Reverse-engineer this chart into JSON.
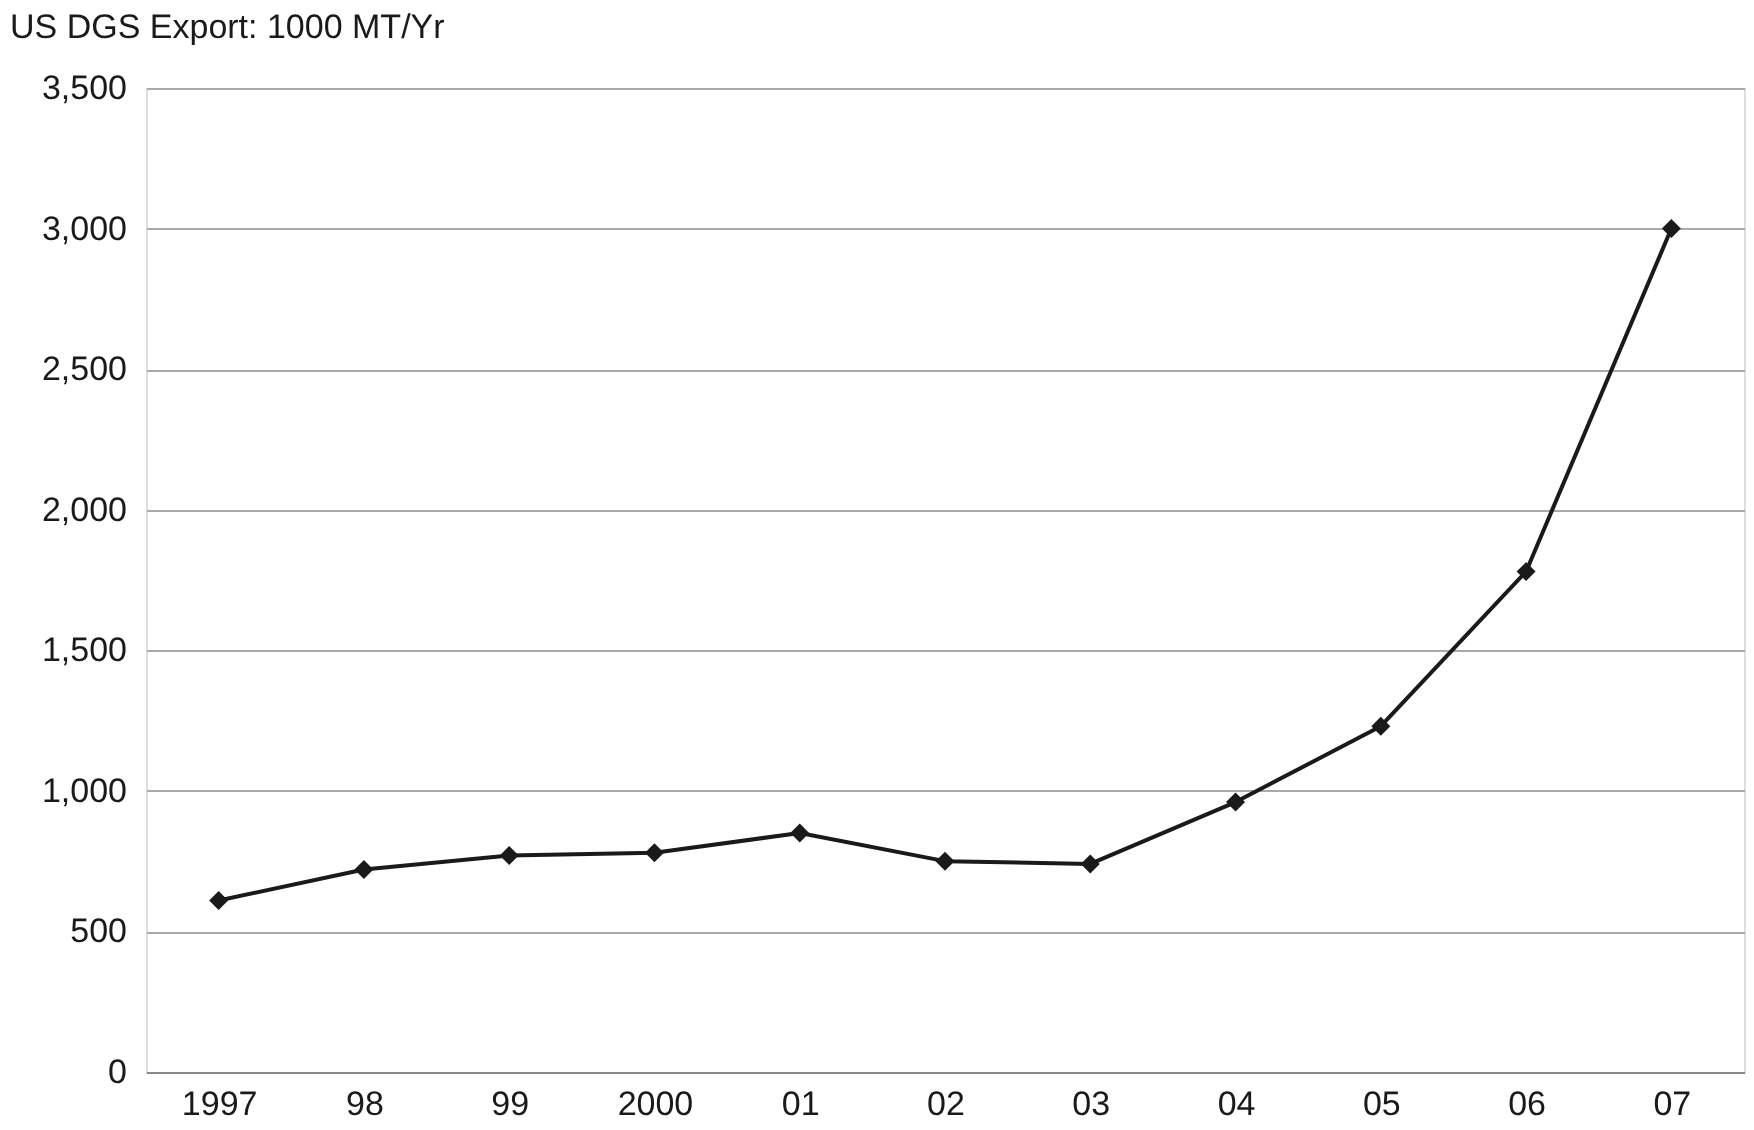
{
  "chart_data": {
    "type": "line",
    "title": "US DGS Export: 1000 MT/Yr",
    "categories": [
      "1997",
      "98",
      "99",
      "2000",
      "01",
      "02",
      "03",
      "04",
      "05",
      "06",
      "07"
    ],
    "series": [
      {
        "color": "#1a1a1a",
        "values": [
          610,
          720,
          770,
          780,
          850,
          750,
          740,
          960,
          1230,
          1780,
          3000
        ]
      }
    ],
    "ylim": [
      0,
      3500
    ],
    "yticks": [
      0,
      500,
      {
        "value": 1000,
        "label": "1,000"
      },
      {
        "value": 1500,
        "label": "1,500"
      },
      {
        "value": 2000,
        "label": "2,000"
      },
      {
        "value": 2500,
        "label": "2,500"
      },
      {
        "value": 3000,
        "label": "3,000"
      },
      {
        "value": 3500,
        "label": "3,500"
      }
    ],
    "grid": "y",
    "marker": "diamond",
    "line_style": "solid"
  }
}
